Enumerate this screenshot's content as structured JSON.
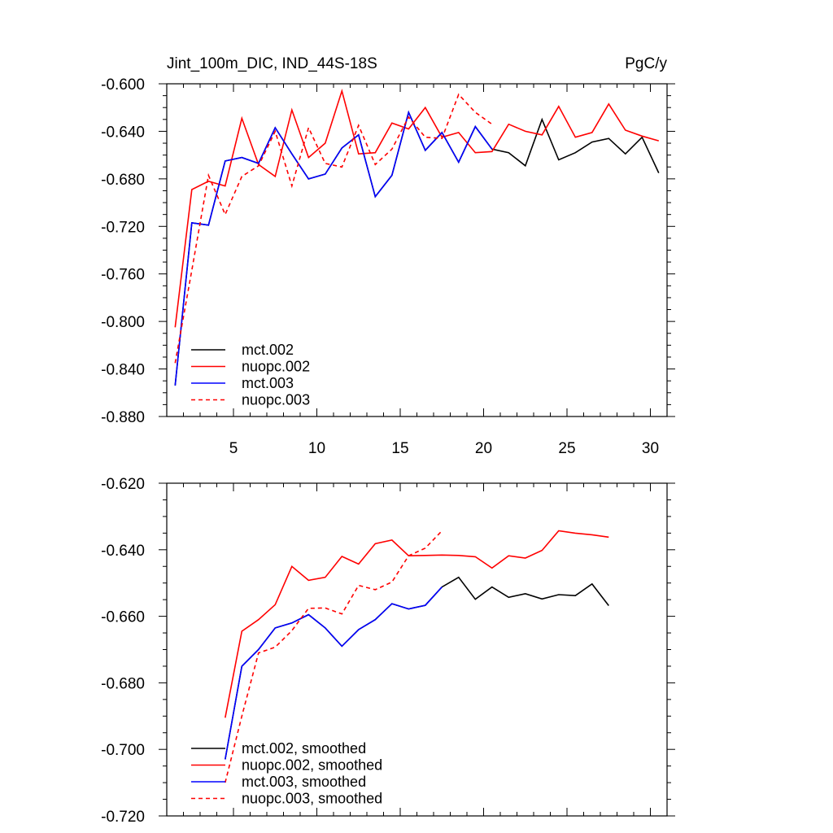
{
  "chart_data": [
    {
      "type": "line",
      "title": "Jint_100m_DIC, IND_44S-18S",
      "title_right": "PgC/y",
      "xlabel": "",
      "ylabel": "",
      "xlim": [
        1,
        31
      ],
      "ylim": [
        -0.88,
        -0.6
      ],
      "xticks": [
        5,
        10,
        15,
        20,
        25,
        30
      ],
      "xtick_labels": [
        "5",
        "10",
        "15",
        "20",
        "25",
        "30"
      ],
      "yticks": [
        -0.6,
        -0.64,
        -0.68,
        -0.72,
        -0.76,
        -0.8,
        -0.84,
        -0.88
      ],
      "ytick_labels": [
        "-0.600",
        "-0.640",
        "-0.680",
        "-0.720",
        "-0.760",
        "-0.800",
        "-0.840",
        "-0.880"
      ],
      "grid": false,
      "legend_position": "bottom-left",
      "series": [
        {
          "name": "mct.002",
          "color": "#000000",
          "dash": "solid",
          "x": [
            1.5,
            2.5,
            3.5,
            4.5,
            5.5,
            6.5,
            7.5,
            8.5,
            9.5,
            10.5,
            11.5,
            12.5,
            13.5,
            14.5,
            15.5,
            16.5,
            17.5,
            18.5,
            19.5,
            20.5,
            21.5,
            22.5,
            23.5,
            24.5,
            25.5,
            26.5,
            27.5,
            28.5,
            29.5,
            30.5
          ],
          "y": [
            -0.854,
            -0.717,
            -0.719,
            -0.665,
            -0.662,
            -0.667,
            -0.637,
            -0.659,
            -0.68,
            -0.676,
            -0.654,
            -0.643,
            -0.695,
            -0.677,
            -0.624,
            -0.656,
            -0.641,
            -0.666,
            -0.636,
            -0.655,
            -0.658,
            -0.669,
            -0.63,
            -0.664,
            -0.658,
            -0.649,
            -0.646,
            -0.659,
            -0.645,
            -0.675
          ]
        },
        {
          "name": "nuopc.002",
          "color": "#ff0000",
          "dash": "solid",
          "x": [
            1.5,
            2.5,
            3.5,
            4.5,
            5.5,
            6.5,
            7.5,
            8.5,
            9.5,
            10.5,
            11.5,
            12.5,
            13.5,
            14.5,
            15.5,
            16.5,
            17.5,
            18.5,
            19.5,
            20.5,
            21.5,
            22.5,
            23.5,
            24.5,
            25.5,
            26.5,
            27.5,
            28.5,
            29.5,
            30.5
          ],
          "y": [
            -0.805,
            -0.689,
            -0.682,
            -0.686,
            -0.629,
            -0.668,
            -0.678,
            -0.622,
            -0.662,
            -0.65,
            -0.606,
            -0.659,
            -0.658,
            -0.633,
            -0.638,
            -0.62,
            -0.645,
            -0.641,
            -0.658,
            -0.657,
            -0.634,
            -0.64,
            -0.643,
            -0.619,
            -0.645,
            -0.641,
            -0.617,
            -0.639,
            -0.644,
            -0.648
          ]
        },
        {
          "name": "mct.003",
          "color": "#0000ff",
          "dash": "solid",
          "x": [
            1.5,
            2.5,
            3.5,
            4.5,
            5.5,
            6.5,
            7.5,
            8.5,
            9.5,
            10.5,
            11.5,
            12.5,
            13.5,
            14.5,
            15.5,
            16.5,
            17.5,
            18.5,
            19.5,
            20.5
          ],
          "y": [
            -0.854,
            -0.717,
            -0.719,
            -0.665,
            -0.662,
            -0.667,
            -0.637,
            -0.659,
            -0.68,
            -0.676,
            -0.654,
            -0.643,
            -0.695,
            -0.677,
            -0.624,
            -0.656,
            -0.641,
            -0.666,
            -0.636,
            -0.655
          ]
        },
        {
          "name": "nuopc.003",
          "color": "#ff0000",
          "dash": "dashed",
          "x": [
            1.5,
            2.5,
            3.5,
            4.5,
            5.5,
            6.5,
            7.5,
            8.5,
            9.5,
            10.5,
            11.5,
            12.5,
            13.5,
            14.5,
            15.5,
            16.5,
            17.5,
            18.5,
            19.5,
            20.5
          ],
          "y": [
            -0.835,
            -0.757,
            -0.677,
            -0.71,
            -0.678,
            -0.669,
            -0.64,
            -0.686,
            -0.637,
            -0.667,
            -0.67,
            -0.635,
            -0.668,
            -0.655,
            -0.628,
            -0.645,
            -0.646,
            -0.609,
            -0.624,
            -0.634
          ]
        }
      ]
    },
    {
      "type": "line",
      "title": "",
      "xlabel": "",
      "ylabel": "",
      "xlim": [
        1,
        31
      ],
      "ylim": [
        -0.72,
        -0.62
      ],
      "xticks": [
        5,
        10,
        15,
        20,
        25,
        30
      ],
      "xtick_labels": [],
      "yticks": [
        -0.62,
        -0.64,
        -0.66,
        -0.68,
        -0.7,
        -0.72
      ],
      "ytick_labels": [
        "-0.620",
        "-0.640",
        "-0.660",
        "-0.680",
        "-0.700",
        "-0.720"
      ],
      "grid": false,
      "legend_position": "bottom-left",
      "series": [
        {
          "name": "mct.002, smoothed",
          "color": "#000000",
          "dash": "solid",
          "x": [
            4.5,
            5.5,
            6.5,
            7.5,
            8.5,
            9.5,
            10.5,
            11.5,
            12.5,
            13.5,
            14.5,
            15.5,
            16.5,
            17.5,
            18.5,
            19.5,
            20.5,
            21.5,
            22.5,
            23.5,
            24.5,
            25.5,
            26.5,
            27.5
          ],
          "y": [
            -0.703,
            -0.675,
            -0.67,
            -0.6635,
            -0.662,
            -0.6595,
            -0.6635,
            -0.669,
            -0.664,
            -0.661,
            -0.6562,
            -0.6578,
            -0.6567,
            -0.6512,
            -0.6483,
            -0.6549,
            -0.6512,
            -0.6543,
            -0.6532,
            -0.6548,
            -0.6535,
            -0.6538,
            -0.6503,
            -0.6568
          ]
        },
        {
          "name": "nuopc.002, smoothed",
          "color": "#ff0000",
          "dash": "solid",
          "x": [
            4.5,
            5.5,
            6.5,
            7.5,
            8.5,
            9.5,
            10.5,
            11.5,
            12.5,
            13.5,
            14.5,
            15.5,
            16.5,
            17.5,
            18.5,
            19.5,
            20.5,
            21.5,
            22.5,
            23.5,
            24.5,
            25.5,
            26.5,
            27.5
          ],
          "y": [
            -0.6905,
            -0.6645,
            -0.661,
            -0.6565,
            -0.645,
            -0.6492,
            -0.6483,
            -0.642,
            -0.6443,
            -0.6382,
            -0.6371,
            -0.6418,
            -0.6417,
            -0.6416,
            -0.6417,
            -0.6421,
            -0.6455,
            -0.6418,
            -0.6425,
            -0.6402,
            -0.6343,
            -0.635,
            -0.6355,
            -0.6362
          ]
        },
        {
          "name": "mct.003, smoothed",
          "color": "#0000ff",
          "dash": "solid",
          "x": [
            4.5,
            5.5,
            6.5,
            7.5,
            8.5,
            9.5,
            10.5,
            11.5,
            12.5,
            13.5,
            14.5,
            15.5,
            16.5,
            17.5
          ],
          "y": [
            -0.703,
            -0.675,
            -0.67,
            -0.6635,
            -0.662,
            -0.6595,
            -0.6635,
            -0.669,
            -0.664,
            -0.661,
            -0.6562,
            -0.6578,
            -0.6567,
            -0.6512
          ]
        },
        {
          "name": "nuopc.003, smoothed",
          "color": "#ff0000",
          "dash": "dashed",
          "x": [
            4.5,
            5.5,
            6.5,
            7.5,
            8.5,
            9.5,
            10.5,
            11.5,
            12.5,
            13.5,
            14.5,
            15.5,
            16.5,
            17.5
          ],
          "y": [
            -0.71,
            -0.69,
            -0.671,
            -0.6693,
            -0.6643,
            -0.6576,
            -0.6575,
            -0.6593,
            -0.6507,
            -0.652,
            -0.6497,
            -0.6418,
            -0.6395,
            -0.6343
          ]
        }
      ]
    }
  ]
}
